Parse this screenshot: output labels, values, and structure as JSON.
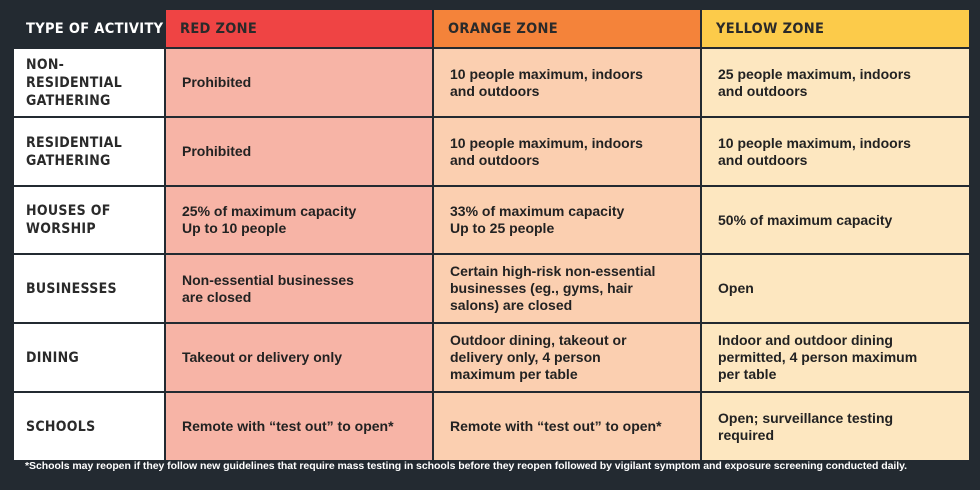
{
  "headers": {
    "type": "TYPE OF ACTIVITY",
    "red": "RED ZONE",
    "orange": "ORANGE ZONE",
    "yellow": "YELLOW ZONE"
  },
  "colors": {
    "red_zone": "#ef4444",
    "orange_zone": "#f4833a",
    "yellow_zone": "#fccb4a",
    "background": "#232a31"
  },
  "rows": [
    {
      "activity": "NON-RESIDENTIAL\nGATHERING",
      "red": "Prohibited",
      "orange": "10 people maximum, indoors\nand outdoors",
      "yellow": "25 people maximum, indoors\nand outdoors"
    },
    {
      "activity": "RESIDENTIAL\nGATHERING",
      "red": "Prohibited",
      "orange": "10 people maximum, indoors\nand outdoors",
      "yellow": "10 people maximum, indoors\nand outdoors"
    },
    {
      "activity": "HOUSES OF\nWORSHIP",
      "red": "25% of maximum capacity\nUp to 10 people",
      "orange": "33% of maximum capacity\nUp to 25 people",
      "yellow": "50% of maximum capacity"
    },
    {
      "activity": "BUSINESSES",
      "red": "Non-essential businesses\nare closed",
      "orange": "Certain high-risk non-essential\nbusinesses (eg., gyms, hair\nsalons) are closed",
      "yellow": "Open"
    },
    {
      "activity": "DINING",
      "red": "Takeout or delivery only",
      "orange": "Outdoor dining, takeout or\ndelivery only, 4 person\nmaximum per table",
      "yellow": "Indoor and outdoor dining\npermitted, 4 person maximum\nper table"
    },
    {
      "activity": "SCHOOLS",
      "red": "Remote with “test out” to open*",
      "orange": "Remote with “test out” to open*",
      "yellow": "Open; surveillance testing\nrequired"
    }
  ],
  "footnote": "*Schools may reopen if they follow new guidelines that require mass testing in schools before they reopen followed by vigilant symptom and exposure screening conducted daily."
}
